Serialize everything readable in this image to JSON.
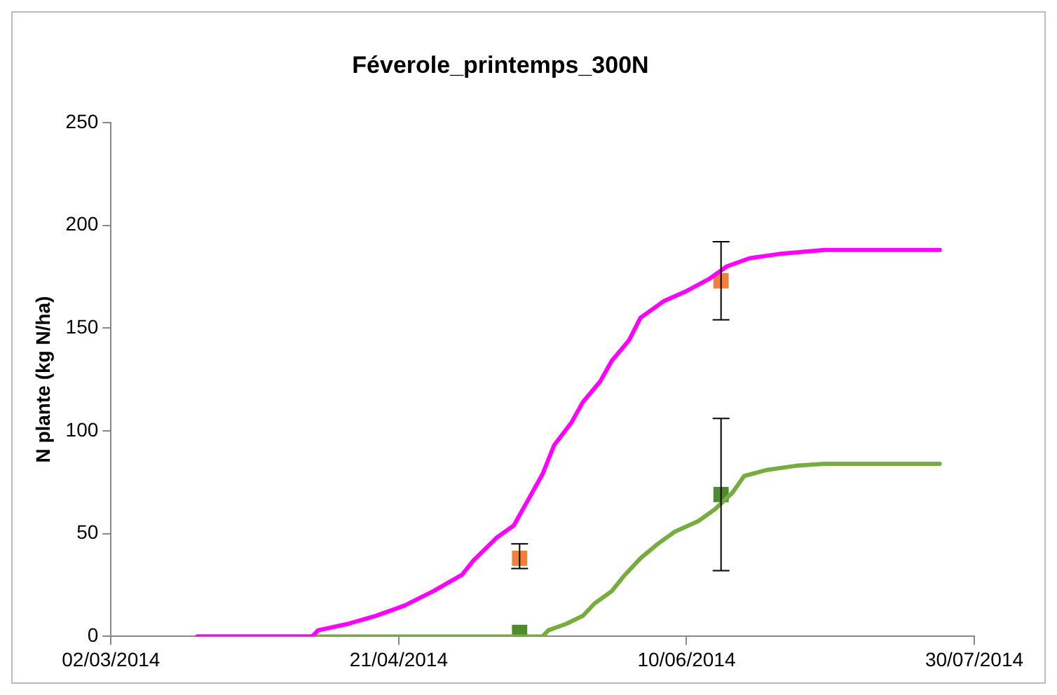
{
  "chart_data": {
    "type": "line",
    "title": "Féverole_printemps_300N",
    "ylabel": "N plante (kg N/ha)",
    "xlim": [
      "2014-03-02",
      "2014-07-30"
    ],
    "xticks": [
      {
        "value": "2014-03-02",
        "label": "02/03/2014"
      },
      {
        "value": "2014-04-21",
        "label": "21/04/2014"
      },
      {
        "value": "2014-06-10",
        "label": "10/06/2014"
      },
      {
        "value": "2014-07-30",
        "label": "30/07/2014"
      }
    ],
    "ylim": [
      0,
      250
    ],
    "yticks": [
      0,
      50,
      100,
      150,
      200,
      250
    ],
    "series": [
      {
        "color": "#ff00ff",
        "marker": "none",
        "x": [
          "2014-03-17",
          "2014-04-06",
          "2014-04-07",
          "2014-04-12",
          "2014-04-17",
          "2014-04-22",
          "2014-04-27",
          "2014-05-02",
          "2014-05-04",
          "2014-05-08",
          "2014-05-11",
          "2014-05-13",
          "2014-05-16",
          "2014-05-18",
          "2014-05-21",
          "2014-05-23",
          "2014-05-26",
          "2014-05-28",
          "2014-05-31",
          "2014-06-02",
          "2014-06-06",
          "2014-06-10",
          "2014-06-14",
          "2014-06-17",
          "2014-06-21",
          "2014-06-26",
          "2014-07-04",
          "2014-07-24"
        ],
        "values": [
          0,
          0,
          3,
          6,
          10,
          15,
          22,
          30,
          37,
          48,
          54,
          64,
          79,
          93,
          104,
          114,
          124,
          134,
          144,
          155,
          163,
          168,
          174,
          180,
          184,
          186,
          188,
          188
        ]
      },
      {
        "color": "#77ac3f",
        "marker": "none",
        "x": [
          "2014-03-17",
          "2014-05-16",
          "2014-05-17",
          "2014-05-20",
          "2014-05-23",
          "2014-05-25",
          "2014-05-28",
          "2014-05-30",
          "2014-06-02",
          "2014-06-05",
          "2014-06-08",
          "2014-06-12",
          "2014-06-15",
          "2014-06-18",
          "2014-06-20",
          "2014-06-24",
          "2014-06-29",
          "2014-07-04",
          "2014-07-24"
        ],
        "values": [
          0,
          0,
          3,
          6,
          10,
          16,
          22,
          29,
          38,
          45,
          51,
          56,
          62,
          70,
          78,
          81,
          83,
          84,
          84
        ]
      },
      {
        "type": "scatter",
        "color": "#f0803c",
        "marker": "square",
        "x": [
          "2014-05-12",
          "2014-06-16"
        ],
        "values": [
          38,
          173
        ],
        "errors": [
          [
            33,
            45
          ],
          [
            154,
            192
          ]
        ]
      },
      {
        "type": "scatter",
        "color": "#4e8a2e",
        "marker": "square",
        "x": [
          "2014-05-12",
          "2014-06-16"
        ],
        "values": [
          2,
          69
        ],
        "errors": [
          null,
          [
            32,
            106
          ]
        ]
      }
    ]
  }
}
